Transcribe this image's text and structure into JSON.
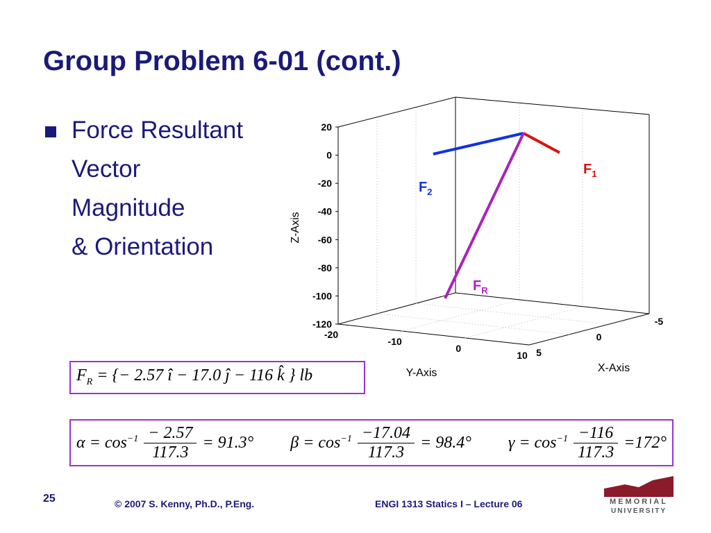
{
  "title": "Group Problem 6-01 (cont.)",
  "bullet": {
    "lines": [
      "Force Resultant",
      "Vector",
      "Magnitude",
      "& Orientation"
    ]
  },
  "plot": {
    "z_ticks": [
      "20",
      "0",
      "-20",
      "-40",
      "-60",
      "-80",
      "-100",
      "-120"
    ],
    "y_ticks": [
      "-20",
      "-10",
      "0",
      "10"
    ],
    "x_ticks": [
      "5",
      "0",
      "-5"
    ],
    "z_label": "Z-Axis",
    "y_label": "Y-Axis",
    "x_label": "X-Axis",
    "vectors": [
      {
        "name": "F",
        "sub": "1"
      },
      {
        "name": "F",
        "sub": "2"
      },
      {
        "name": "F",
        "sub": "R"
      }
    ]
  },
  "resultant": {
    "symbol": "F",
    "sub": "R",
    "expression": "= {− 2.57 î − 17.0 ĵ − 116 k̂ }",
    "unit": "lb"
  },
  "angles": [
    {
      "symbol": "α",
      "func": "cos",
      "exp": "−1",
      "num": "− 2.57",
      "den": "117.3",
      "result": "= 91.3°"
    },
    {
      "symbol": "β",
      "func": "cos",
      "exp": "−1",
      "num": "−17.04",
      "den": "117.3",
      "result": "= 98.4°"
    },
    {
      "symbol": "γ",
      "func": "cos",
      "exp": "−1",
      "num": "−116",
      "den": "117.3",
      "result": "=172°"
    }
  ],
  "footer": {
    "page": "25",
    "copyright": "© 2007 S. Kenny, Ph.D., P.Eng.",
    "course": "ENGI 1313 Statics I – Lecture 06"
  },
  "logo": {
    "line1": "MEMORIAL",
    "line2": "UNIVERSITY"
  }
}
